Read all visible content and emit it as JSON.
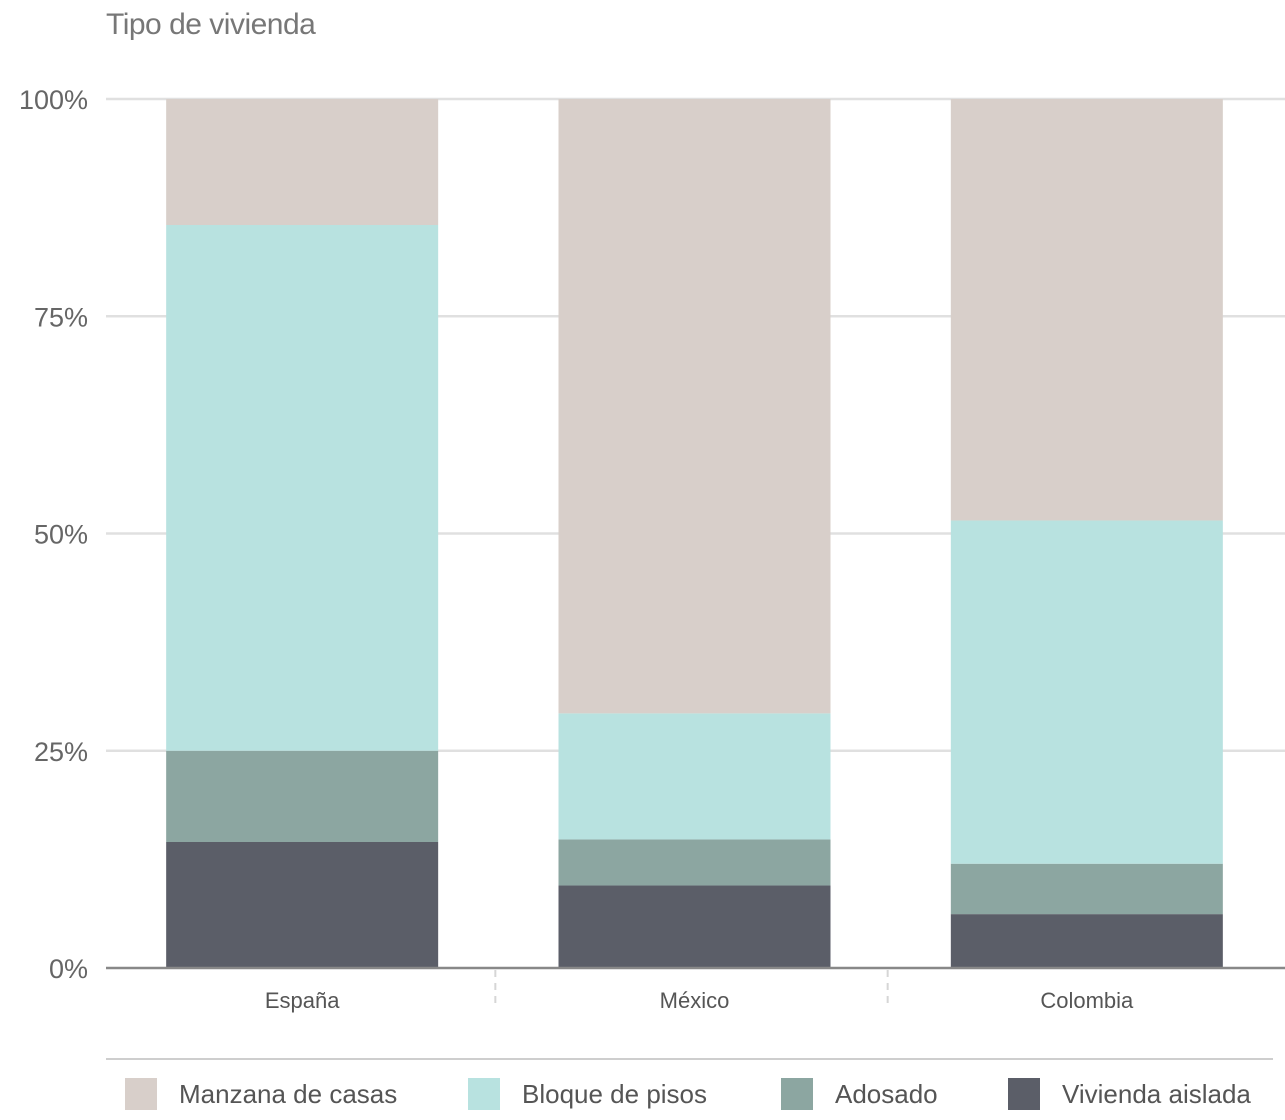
{
  "chart_data": {
    "type": "bar",
    "stacked": true,
    "title": "Tipo de vivienda",
    "xlabel": "",
    "ylabel": "",
    "categories": [
      "España",
      "México",
      "Colombia"
    ],
    "ylim": [
      0,
      100
    ],
    "yticks": [
      0,
      25,
      50,
      75,
      100
    ],
    "ytick_labels": [
      "0%",
      "25%",
      "50%",
      "75%",
      "100%"
    ],
    "grid": true,
    "legend_position": "bottom",
    "series": [
      {
        "name": "Vivienda aislada",
        "color": "#5b5e68",
        "values": [
          14.5,
          9.5,
          6.2
        ]
      },
      {
        "name": "Adosado",
        "color": "#8ca6a1",
        "values": [
          10.5,
          5.3,
          5.8
        ]
      },
      {
        "name": "Bloque de pisos",
        "color": "#b8e2e0",
        "values": [
          60.5,
          14.5,
          39.5
        ]
      },
      {
        "name": "Manzana de casas",
        "color": "#d8cfca",
        "values": [
          14.5,
          70.7,
          48.5
        ]
      }
    ]
  }
}
